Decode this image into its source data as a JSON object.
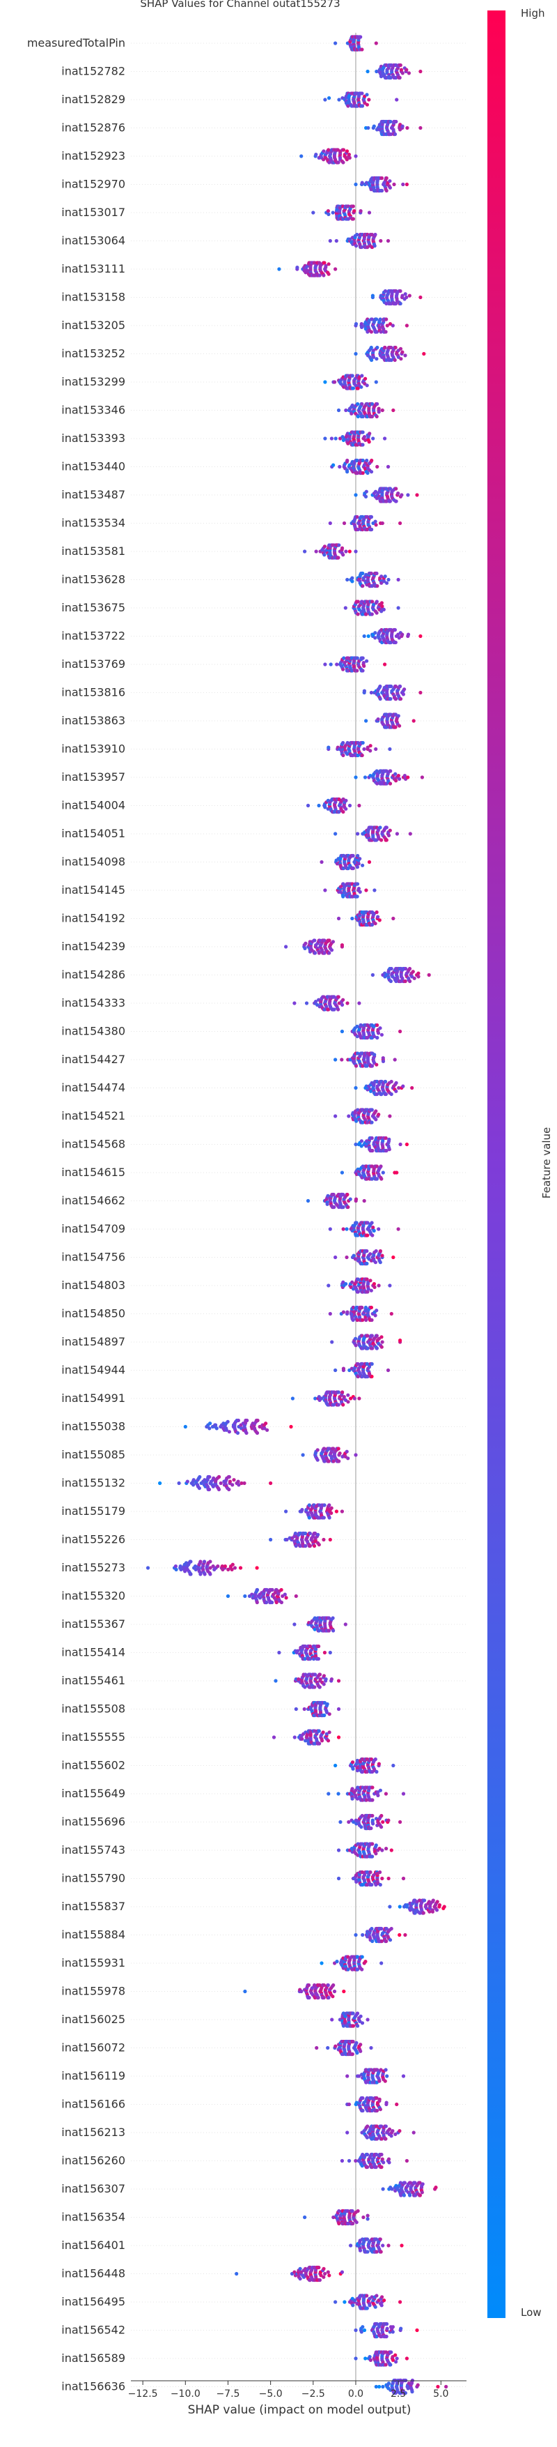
{
  "chart_data": {
    "type": "beeswarm",
    "title": "SHAP Values for Channel outat155273",
    "xlabel": "SHAP value (impact on model output)",
    "xlim": [
      -13.2,
      6.5
    ],
    "xticks": [
      -12.5,
      -10.0,
      -7.5,
      -5.0,
      -2.5,
      0.0,
      2.5,
      5.0
    ],
    "xtick_labels": [
      "−12.5",
      "−10.0",
      "−7.5",
      "−5.0",
      "−2.5",
      "0.0",
      "2.5",
      "5.0"
    ],
    "colorbar": {
      "label": "Feature value",
      "high": "High",
      "low": "Low",
      "low_color": "#008bfb",
      "mid_color": "#7f3cd8",
      "high_color": "#ff0052"
    },
    "features": [
      {
        "name": "measuredTotalPin",
        "center": 0.0,
        "spread": 0.4,
        "min": -1.2,
        "max": 1.2,
        "corr": 0.2
      },
      {
        "name": "inat152782",
        "center": 2.0,
        "spread": 1.0,
        "min": 0.7,
        "max": 3.8,
        "corr": 0.7
      },
      {
        "name": "inat152829",
        "center": 0.0,
        "spread": 1.0,
        "min": -1.8,
        "max": 2.4,
        "corr": 0.3
      },
      {
        "name": "inat152876",
        "center": 1.9,
        "spread": 0.9,
        "min": 0.6,
        "max": 3.8,
        "corr": 0.7
      },
      {
        "name": "inat152923",
        "center": -1.3,
        "spread": 0.9,
        "min": -3.2,
        "max": 0.0,
        "corr": 0.5
      },
      {
        "name": "inat152970",
        "center": 1.3,
        "spread": 1.0,
        "min": 0.0,
        "max": 3.0,
        "corr": 0.6
      },
      {
        "name": "inat153017",
        "center": -0.7,
        "spread": 0.9,
        "min": -2.5,
        "max": 0.8,
        "corr": 0.3
      },
      {
        "name": "inat153064",
        "center": 0.5,
        "spread": 0.9,
        "min": -1.5,
        "max": 1.9,
        "corr": 0.4
      },
      {
        "name": "inat153111",
        "center": -2.5,
        "spread": 1.0,
        "min": -4.5,
        "max": -1.2,
        "corr": 0.6
      },
      {
        "name": "inat153158",
        "center": 2.2,
        "spread": 1.0,
        "min": 1.0,
        "max": 3.8,
        "corr": 0.7
      },
      {
        "name": "inat153205",
        "center": 1.2,
        "spread": 1.0,
        "min": 0.0,
        "max": 3.0,
        "corr": 0.5
      },
      {
        "name": "inat153252",
        "center": 1.7,
        "spread": 1.2,
        "min": 0.0,
        "max": 4.0,
        "corr": 0.6
      },
      {
        "name": "inat153299",
        "center": -0.3,
        "spread": 1.0,
        "min": -1.8,
        "max": 1.2,
        "corr": 0.3
      },
      {
        "name": "inat153346",
        "center": 0.6,
        "spread": 1.0,
        "min": -1.0,
        "max": 2.2,
        "corr": 0.4
      },
      {
        "name": "inat153393",
        "center": 0.0,
        "spread": 1.0,
        "min": -1.8,
        "max": 1.7,
        "corr": 0.3
      },
      {
        "name": "inat153440",
        "center": 0.2,
        "spread": 0.9,
        "min": -1.4,
        "max": 1.9,
        "corr": 0.3
      },
      {
        "name": "inat153487",
        "center": 1.7,
        "spread": 1.1,
        "min": 0.0,
        "max": 3.6,
        "corr": 0.6
      },
      {
        "name": "inat153534",
        "center": 0.4,
        "spread": 1.0,
        "min": -1.5,
        "max": 2.6,
        "corr": 0.3
      },
      {
        "name": "inat153581",
        "center": -1.4,
        "spread": 0.8,
        "min": -3.0,
        "max": 0.0,
        "corr": 0.4
      },
      {
        "name": "inat153628",
        "center": 0.8,
        "spread": 1.0,
        "min": -0.5,
        "max": 2.5,
        "corr": 0.4
      },
      {
        "name": "inat153675",
        "center": 0.7,
        "spread": 1.0,
        "min": -0.6,
        "max": 2.5,
        "corr": 0.4
      },
      {
        "name": "inat153722",
        "center": 1.8,
        "spread": 1.0,
        "min": 0.5,
        "max": 3.8,
        "corr": 0.6
      },
      {
        "name": "inat153769",
        "center": -0.3,
        "spread": 1.0,
        "min": -1.8,
        "max": 1.7,
        "corr": 0.3
      },
      {
        "name": "inat153816",
        "center": 2.0,
        "spread": 1.0,
        "min": 0.5,
        "max": 3.8,
        "corr": 0.6
      },
      {
        "name": "inat153863",
        "center": 2.0,
        "spread": 0.9,
        "min": 0.6,
        "max": 3.4,
        "corr": 0.6
      },
      {
        "name": "inat153910",
        "center": -0.1,
        "spread": 1.0,
        "min": -1.6,
        "max": 2.0,
        "corr": 0.3
      },
      {
        "name": "inat153957",
        "center": 1.7,
        "spread": 1.1,
        "min": 0.0,
        "max": 3.9,
        "corr": 0.6
      },
      {
        "name": "inat154004",
        "center": -1.2,
        "spread": 0.9,
        "min": -2.8,
        "max": 0.2,
        "corr": 0.4
      },
      {
        "name": "inat154051",
        "center": 1.2,
        "spread": 1.0,
        "min": -1.2,
        "max": 3.2,
        "corr": 0.5
      },
      {
        "name": "inat154098",
        "center": -0.5,
        "spread": 0.8,
        "min": -2.0,
        "max": 0.8,
        "corr": 0.3
      },
      {
        "name": "inat154145",
        "center": -0.4,
        "spread": 0.8,
        "min": -1.8,
        "max": 1.1,
        "corr": 0.3
      },
      {
        "name": "inat154192",
        "center": 0.6,
        "spread": 0.9,
        "min": -1.0,
        "max": 2.2,
        "corr": 0.3
      },
      {
        "name": "inat154239",
        "center": -2.2,
        "spread": 1.0,
        "min": -4.1,
        "max": -0.8,
        "corr": 0.6
      },
      {
        "name": "inat154286",
        "center": 2.6,
        "spread": 1.0,
        "min": 1.0,
        "max": 4.3,
        "corr": 0.7
      },
      {
        "name": "inat154333",
        "center": -1.5,
        "spread": 1.0,
        "min": -3.6,
        "max": 0.2,
        "corr": 0.5
      },
      {
        "name": "inat154380",
        "center": 0.7,
        "spread": 1.0,
        "min": -0.8,
        "max": 2.6,
        "corr": 0.4
      },
      {
        "name": "inat154427",
        "center": 0.5,
        "spread": 1.0,
        "min": -1.2,
        "max": 2.3,
        "corr": 0.4
      },
      {
        "name": "inat154474",
        "center": 1.5,
        "spread": 1.1,
        "min": 0.0,
        "max": 3.3,
        "corr": 0.6
      },
      {
        "name": "inat154521",
        "center": 0.4,
        "spread": 0.9,
        "min": -1.2,
        "max": 2.0,
        "corr": 0.3
      },
      {
        "name": "inat154568",
        "center": 1.4,
        "spread": 1.0,
        "min": 0.0,
        "max": 3.0,
        "corr": 0.5
      },
      {
        "name": "inat154615",
        "center": 0.8,
        "spread": 1.0,
        "min": -0.8,
        "max": 2.4,
        "corr": 0.4
      },
      {
        "name": "inat154662",
        "center": -1.0,
        "spread": 1.0,
        "min": -2.8,
        "max": 0.5,
        "corr": 0.4
      },
      {
        "name": "inat154709",
        "center": 0.5,
        "spread": 1.0,
        "min": -1.5,
        "max": 2.5,
        "corr": 0.3
      },
      {
        "name": "inat154756",
        "center": 0.6,
        "spread": 0.9,
        "min": -1.2,
        "max": 2.2,
        "corr": 0.3
      },
      {
        "name": "inat154803",
        "center": 0.3,
        "spread": 1.0,
        "min": -1.6,
        "max": 2.0,
        "corr": 0.3
      },
      {
        "name": "inat154850",
        "center": 0.2,
        "spread": 1.0,
        "min": -1.5,
        "max": 2.1,
        "corr": 0.3
      },
      {
        "name": "inat154897",
        "center": 0.7,
        "spread": 1.0,
        "min": -1.4,
        "max": 2.6,
        "corr": 0.4
      },
      {
        "name": "inat154944",
        "center": 0.4,
        "spread": 0.9,
        "min": -1.2,
        "max": 1.9,
        "corr": 0.3
      },
      {
        "name": "inat154991",
        "center": -1.3,
        "spread": 1.0,
        "min": -3.7,
        "max": 0.2,
        "corr": 0.5
      },
      {
        "name": "inat155038",
        "center": -7.0,
        "spread": 2.0,
        "min": -10.0,
        "max": -3.8,
        "corr": 0.8
      },
      {
        "name": "inat155085",
        "center": -1.5,
        "spread": 0.9,
        "min": -3.1,
        "max": 0.0,
        "corr": 0.5
      },
      {
        "name": "inat155132",
        "center": -8.3,
        "spread": 2.0,
        "min": -11.5,
        "max": -5.0,
        "corr": 0.8
      },
      {
        "name": "inat155179",
        "center": -2.2,
        "spread": 1.0,
        "min": -4.1,
        "max": -0.8,
        "corr": 0.5
      },
      {
        "name": "inat155226",
        "center": -3.0,
        "spread": 1.0,
        "min": -5.0,
        "max": -1.5,
        "corr": 0.6
      },
      {
        "name": "inat155273",
        "center": -9.0,
        "spread": 2.1,
        "min": -12.2,
        "max": -5.8,
        "corr": 0.8
      },
      {
        "name": "inat155320",
        "center": -5.2,
        "spread": 1.2,
        "min": -7.5,
        "max": -3.5,
        "corr": 0.7
      },
      {
        "name": "inat155367",
        "center": -2.0,
        "spread": 0.8,
        "min": -3.6,
        "max": -0.6,
        "corr": 0.4
      },
      {
        "name": "inat155414",
        "center": -2.8,
        "spread": 0.9,
        "min": -4.5,
        "max": -1.5,
        "corr": 0.4
      },
      {
        "name": "inat155461",
        "center": -2.7,
        "spread": 1.0,
        "min": -4.7,
        "max": -1.0,
        "corr": 0.5
      },
      {
        "name": "inat155508",
        "center": -2.2,
        "spread": 0.7,
        "min": -3.5,
        "max": -1.0,
        "corr": 0.3
      },
      {
        "name": "inat155555",
        "center": -2.5,
        "spread": 1.0,
        "min": -4.8,
        "max": -1.0,
        "corr": 0.4
      },
      {
        "name": "inat155602",
        "center": 0.6,
        "spread": 1.0,
        "min": -1.2,
        "max": 2.2,
        "corr": 0.3
      },
      {
        "name": "inat155649",
        "center": 0.5,
        "spread": 1.0,
        "min": -1.6,
        "max": 2.8,
        "corr": 0.3
      },
      {
        "name": "inat155696",
        "center": 0.8,
        "spread": 1.0,
        "min": -0.9,
        "max": 2.6,
        "corr": 0.4
      },
      {
        "name": "inat155743",
        "center": 0.6,
        "spread": 1.0,
        "min": -1.0,
        "max": 2.1,
        "corr": 0.3
      },
      {
        "name": "inat155790",
        "center": 0.7,
        "spread": 1.0,
        "min": -1.0,
        "max": 2.8,
        "corr": 0.4
      },
      {
        "name": "inat155837",
        "center": 3.8,
        "spread": 1.2,
        "min": 2.0,
        "max": 5.2,
        "corr": 0.7
      },
      {
        "name": "inat155884",
        "center": 1.3,
        "spread": 1.0,
        "min": 0.0,
        "max": 2.9,
        "corr": 0.5
      },
      {
        "name": "inat155931",
        "center": -0.2,
        "spread": 1.0,
        "min": -2.0,
        "max": 1.5,
        "corr": 0.3
      },
      {
        "name": "inat155978",
        "center": -2.3,
        "spread": 1.2,
        "min": -6.5,
        "max": -0.7,
        "corr": 0.6
      },
      {
        "name": "inat156025",
        "center": -0.3,
        "spread": 0.7,
        "min": -1.4,
        "max": 0.7,
        "corr": 0.3
      },
      {
        "name": "inat156072",
        "center": -0.4,
        "spread": 0.9,
        "min": -2.3,
        "max": 0.9,
        "corr": 0.3
      },
      {
        "name": "inat156119",
        "center": 1.0,
        "spread": 1.0,
        "min": -0.5,
        "max": 2.8,
        "corr": 0.4
      },
      {
        "name": "inat156166",
        "center": 0.8,
        "spread": 0.9,
        "min": -0.5,
        "max": 2.4,
        "corr": 0.4
      },
      {
        "name": "inat156213",
        "center": 1.3,
        "spread": 1.1,
        "min": -0.5,
        "max": 3.4,
        "corr": 0.5
      },
      {
        "name": "inat156260",
        "center": 0.9,
        "spread": 1.0,
        "min": -0.8,
        "max": 3.0,
        "corr": 0.4
      },
      {
        "name": "inat156307",
        "center": 3.3,
        "spread": 1.1,
        "min": 1.6,
        "max": 4.7,
        "corr": 0.7
      },
      {
        "name": "inat156354",
        "center": -0.6,
        "spread": 0.9,
        "min": -3.0,
        "max": 0.7,
        "corr": 0.4
      },
      {
        "name": "inat156401",
        "center": 0.9,
        "spread": 1.0,
        "min": -0.3,
        "max": 2.7,
        "corr": 0.4
      },
      {
        "name": "inat156448",
        "center": -2.5,
        "spread": 1.2,
        "min": -7.0,
        "max": -0.8,
        "corr": 0.6
      },
      {
        "name": "inat156495",
        "center": 0.6,
        "spread": 1.0,
        "min": -1.2,
        "max": 2.6,
        "corr": 0.4
      },
      {
        "name": "inat156542",
        "center": 1.4,
        "spread": 1.0,
        "min": 0.0,
        "max": 3.6,
        "corr": 0.5
      },
      {
        "name": "inat156589",
        "center": 1.5,
        "spread": 0.9,
        "min": 0.0,
        "max": 3.0,
        "corr": 0.5
      },
      {
        "name": "inat156636",
        "center": 2.7,
        "spread": 1.1,
        "min": 1.2,
        "max": 5.3,
        "corr": 0.7
      }
    ]
  }
}
